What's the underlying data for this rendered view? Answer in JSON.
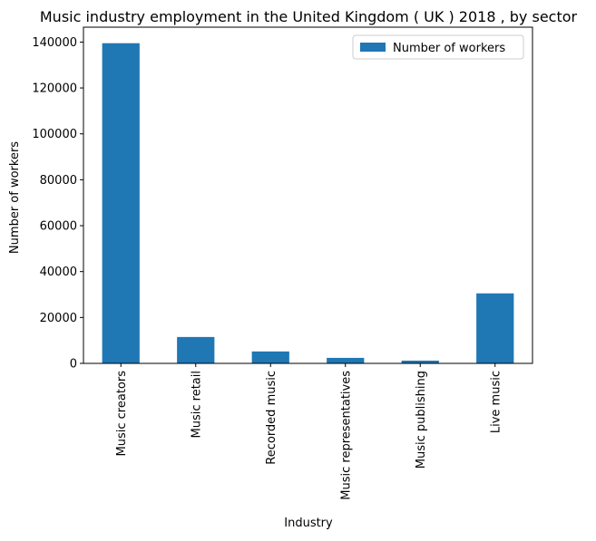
{
  "chart_data": {
    "type": "bar",
    "title": "Music industry employment in the United Kingdom ( UK ) 2018 , by sector",
    "x_label": "Industry",
    "y_label": "Number of workers",
    "categories": [
      "Music creators",
      "Music retail",
      "Recorded music",
      "Music representatives",
      "Music publishing",
      "Live music"
    ],
    "series": [
      {
        "name": "Number of workers",
        "color": "#1f77b4",
        "values": [
          139500,
          11500,
          5200,
          2400,
          1200,
          30500
        ]
      }
    ],
    "ylim": [
      0,
      146475
    ],
    "yticks": [
      0,
      20000,
      40000,
      60000,
      80000,
      100000,
      120000,
      140000
    ],
    "legend": "upper right"
  }
}
